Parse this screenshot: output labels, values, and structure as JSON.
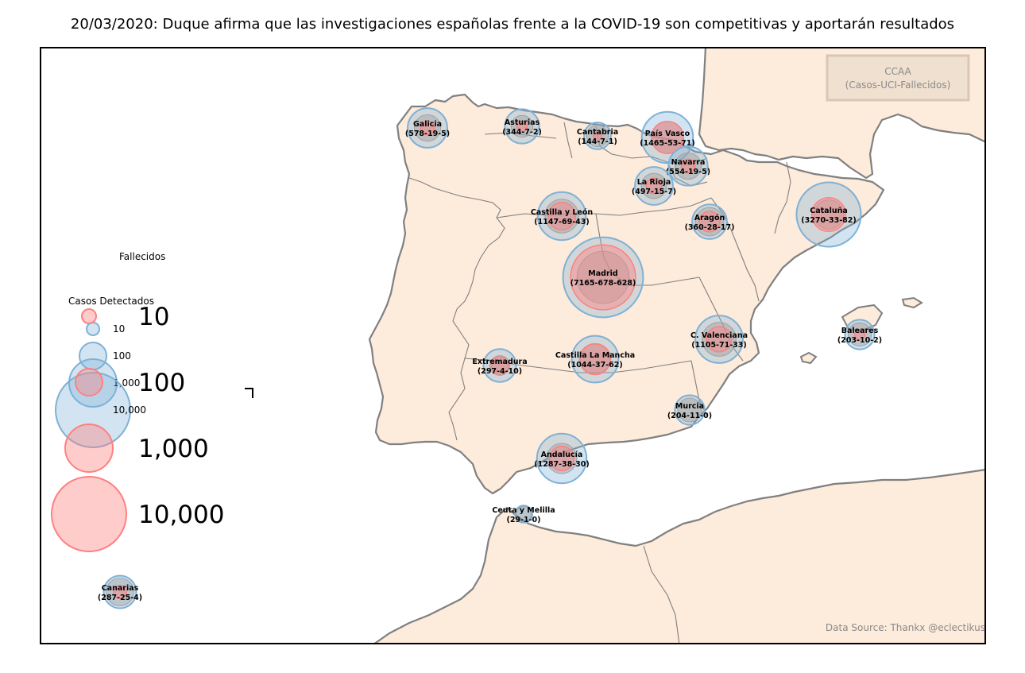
{
  "title": "20/03/2020: Duque afirma que las investigaciones españolas frente a la COVID-19 son competitivas y aportarán resultados",
  "info_box": {
    "line1": "CCAA",
    "line2": "(Casos-UCI-Fallecidos)"
  },
  "source": "Data Source: Thankx @eclectikus",
  "legend": {
    "deaths_title": "Fallecidos",
    "cases_title": "Casos Detectados",
    "death_values": [
      "10",
      "100",
      "1,000",
      "10,000"
    ],
    "case_values": [
      "10",
      "100",
      "1,000",
      "10,000"
    ]
  },
  "colors": {
    "land": "#fdebdb",
    "coast": "#808080",
    "border": "#808080",
    "cases": "#7fb1d6",
    "deaths": "#ff8080",
    "uci": "#a0a0a0"
  },
  "regions": [
    {
      "name": "Galicia",
      "label": "(578-19-5)",
      "cases": 578,
      "uci": 19,
      "deaths": 5
    },
    {
      "name": "Asturias",
      "label": "(344-7-2)",
      "cases": 344,
      "uci": 7,
      "deaths": 2
    },
    {
      "name": "Cantabria",
      "label": "(144-7-1)",
      "cases": 144,
      "uci": 7,
      "deaths": 1
    },
    {
      "name": "País Vasco",
      "label": "(1465-53-71)",
      "cases": 1465,
      "uci": 53,
      "deaths": 71
    },
    {
      "name": "Navarra",
      "label": "(554-19-5)",
      "cases": 554,
      "uci": 19,
      "deaths": 5
    },
    {
      "name": "La Rioja",
      "label": "(497-15-7)",
      "cases": 497,
      "uci": 15,
      "deaths": 7
    },
    {
      "name": "Castilla y León",
      "label": "(1147-69-43)",
      "cases": 1147,
      "uci": 69,
      "deaths": 43
    },
    {
      "name": "Aragón",
      "label": "(360-28-17)",
      "cases": 360,
      "uci": 28,
      "deaths": 17
    },
    {
      "name": "Cataluña",
      "label": "(3270-33-82)",
      "cases": 3270,
      "uci": 33,
      "deaths": 82
    },
    {
      "name": "Madrid",
      "label": "(7165-678-628)",
      "cases": 7165,
      "uci": 678,
      "deaths": 628
    },
    {
      "name": "Baleares",
      "label": "(203-10-2)",
      "cases": 203,
      "uci": 10,
      "deaths": 2
    },
    {
      "name": "C. Valenciana",
      "label": "(1105-71-33)",
      "cases": 1105,
      "uci": 71,
      "deaths": 33
    },
    {
      "name": "Extremadura",
      "label": "(297-4-10)",
      "cases": 297,
      "uci": 4,
      "deaths": 10
    },
    {
      "name": "Castilla La Mancha",
      "label": "(1044-37-62)",
      "cases": 1044,
      "uci": 37,
      "deaths": 62
    },
    {
      "name": "Murcia",
      "label": "(204-11-0)",
      "cases": 204,
      "uci": 11,
      "deaths": 0
    },
    {
      "name": "Andalucía",
      "label": "(1287-38-30)",
      "cases": 1287,
      "uci": 38,
      "deaths": 30
    },
    {
      "name": "Ceuta y Melilla",
      "label": "(29-1-0)",
      "cases": 29,
      "uci": 1,
      "deaths": 0
    },
    {
      "name": "Canarias",
      "label": "(287-25-4)",
      "cases": 287,
      "uci": 25,
      "deaths": 4
    }
  ]
}
